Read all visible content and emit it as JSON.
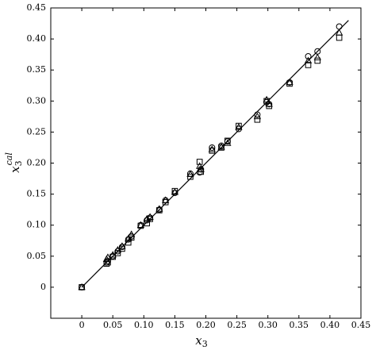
{
  "chart_data": {
    "type": "scatter",
    "xlabel": {
      "base": "x",
      "sub": "3"
    },
    "ylabel": {
      "base": "x",
      "sub": "3",
      "sup": "cal"
    },
    "xlim": [
      -0.05,
      0.45
    ],
    "ylim": [
      -0.05,
      0.45
    ],
    "xticks": [
      0,
      0.05,
      {
        "value": 0.1,
        "label": "0.10"
      },
      0.15,
      {
        "value": 0.2,
        "label": "0.20"
      },
      0.25,
      {
        "value": 0.3,
        "label": "0.30"
      },
      0.35,
      {
        "value": 0.4,
        "label": "0.40"
      },
      0.45
    ],
    "yticks": [
      0,
      0.05,
      {
        "value": 0.1,
        "label": "0.10"
      },
      0.15,
      {
        "value": 0.2,
        "label": "0.20"
      },
      0.25,
      {
        "value": 0.3,
        "label": "0.30"
      },
      0.35,
      {
        "value": 0.4,
        "label": "0.40"
      },
      0.45
    ],
    "reference_line": {
      "x": [
        0,
        0.43
      ],
      "y": [
        0,
        0.43
      ],
      "color": "#000000"
    },
    "x": [
      0,
      0.04,
      0.042,
      0.05,
      0.058,
      0.065,
      0.075,
      0.08,
      0.095,
      0.105,
      0.11,
      0.125,
      0.135,
      0.15,
      0.175,
      0.19,
      0.192,
      0.21,
      0.225,
      0.235,
      0.253,
      0.283,
      0.298,
      0.302,
      0.335,
      0.365,
      0.38,
      0.415
    ],
    "series": [
      {
        "marker": "circle",
        "color": "#000000",
        "values": [
          0,
          0.04,
          0.042,
          0.05,
          0.058,
          0.065,
          0.077,
          0.082,
          0.1,
          0.108,
          0.112,
          0.125,
          0.14,
          0.152,
          0.183,
          0.185,
          0.19,
          0.225,
          0.228,
          0.235,
          0.255,
          0.278,
          0.298,
          0.295,
          0.33,
          0.372,
          0.38,
          0.42
        ]
      },
      {
        "marker": "triangle",
        "color": "#000000",
        "values": [
          0,
          0.045,
          0.048,
          0.052,
          0.06,
          0.066,
          0.078,
          0.085,
          0.1,
          0.11,
          0.113,
          0.126,
          0.14,
          0.153,
          0.182,
          0.195,
          0.19,
          0.222,
          0.226,
          0.232,
          0.258,
          0.275,
          0.302,
          0.295,
          0.33,
          0.365,
          0.37,
          0.41
        ]
      },
      {
        "marker": "square",
        "color": "#000000",
        "values": [
          0,
          0.038,
          0.04,
          0.049,
          0.055,
          0.062,
          0.072,
          0.08,
          0.099,
          0.103,
          0.11,
          0.124,
          0.137,
          0.155,
          0.178,
          0.202,
          0.186,
          0.22,
          0.225,
          0.236,
          0.26,
          0.27,
          0.3,
          0.292,
          0.328,
          0.358,
          0.365,
          0.402
        ]
      }
    ]
  }
}
